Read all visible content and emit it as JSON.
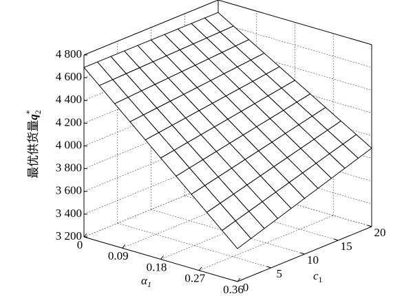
{
  "chart_data": {
    "type": "surface",
    "xlabel": {
      "symbol": "α",
      "sub": "1"
    },
    "ylabel": {
      "symbol": "c",
      "sub": "1"
    },
    "zlabel": {
      "text": "最优供货量",
      "symbol": "q",
      "sup": "*",
      "sub": "2"
    },
    "x": [
      0,
      0.036,
      0.072,
      0.108,
      0.144,
      0.18,
      0.216,
      0.252,
      0.288,
      0.324,
      0.36
    ],
    "y": [
      0,
      2,
      4,
      6,
      8,
      10,
      12,
      14,
      16,
      18,
      20
    ],
    "z": [
      [
        4690,
        4690,
        4690,
        4690,
        4690,
        4690,
        4690,
        4690,
        4690,
        4690,
        4690
      ],
      [
        4570,
        4574,
        4578,
        4582,
        4586,
        4590,
        4594,
        4598,
        4602,
        4606,
        4610
      ],
      [
        4450,
        4458,
        4466,
        4474,
        4482,
        4490,
        4498,
        4506,
        4514,
        4522,
        4530
      ],
      [
        4330,
        4342,
        4354,
        4366,
        4378,
        4390,
        4402,
        4414,
        4426,
        4438,
        4450
      ],
      [
        4210,
        4226,
        4242,
        4258,
        4274,
        4290,
        4306,
        4322,
        4338,
        4354,
        4370
      ],
      [
        4090,
        4110,
        4130,
        4150,
        4170,
        4190,
        4210,
        4230,
        4250,
        4270,
        4290
      ],
      [
        3970,
        3994,
        4018,
        4042,
        4066,
        4090,
        4114,
        4138,
        4162,
        4186,
        4210
      ],
      [
        3850,
        3878,
        3906,
        3934,
        3962,
        3990,
        4018,
        4046,
        4074,
        4102,
        4130
      ],
      [
        3730,
        3762,
        3794,
        3826,
        3858,
        3890,
        3922,
        3954,
        3986,
        4018,
        4050
      ],
      [
        3610,
        3646,
        3682,
        3718,
        3754,
        3790,
        3826,
        3862,
        3898,
        3934,
        3970
      ],
      [
        3490,
        3530,
        3570,
        3610,
        3650,
        3690,
        3730,
        3770,
        3810,
        3850,
        3890
      ]
    ],
    "xlim": [
      0,
      0.36
    ],
    "xticks": [
      0,
      0.09,
      0.18,
      0.27,
      0.36
    ],
    "ylim": [
      0,
      20
    ],
    "yticks": [
      0,
      5,
      10,
      15,
      20
    ],
    "zlim": [
      3200,
      4800
    ],
    "zticks": [
      {
        "value": 3200,
        "label": "3 200"
      },
      {
        "value": 3400,
        "label": "3 400"
      },
      {
        "value": 3600,
        "label": "3 600"
      },
      {
        "value": 3800,
        "label": "3 800"
      },
      {
        "value": 4000,
        "label": "4 000"
      },
      {
        "value": 4200,
        "label": "4 200"
      },
      {
        "value": 4400,
        "label": "4 400"
      },
      {
        "value": 4600,
        "label": "4 600"
      },
      {
        "value": 4800,
        "label": "4 800"
      }
    ],
    "grid": true,
    "surface_color": "#ffffff",
    "edge_color": "#000000"
  }
}
